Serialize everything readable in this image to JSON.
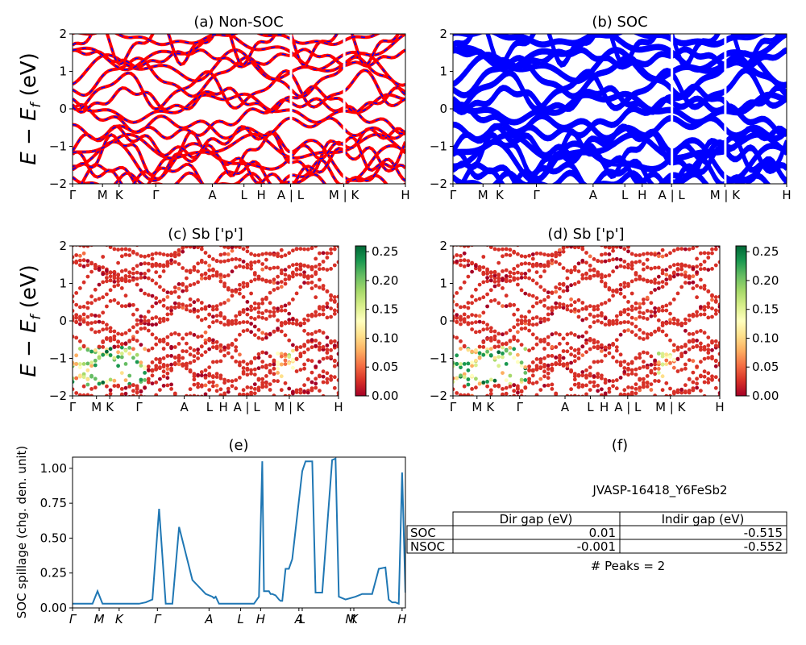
{
  "colors": {
    "nonsoc_primary": "#ff0000",
    "nonsoc_dash": "#0000ff",
    "soc_band": "#0000ff",
    "spillage_line": "#1f77b4",
    "colormap": [
      "#a50026",
      "#d73027",
      "#f46d43",
      "#fdae61",
      "#fee08b",
      "#ffffbf",
      "#d9ef8b",
      "#a6d96a",
      "#66bd63",
      "#1a9850",
      "#006837"
    ]
  },
  "kpath": {
    "labels": [
      "Γ",
      "M",
      "K",
      "Γ",
      "A",
      "L",
      "H",
      "A | L",
      "M | K",
      "H"
    ],
    "positions": [
      0,
      0.09,
      0.14,
      0.25,
      0.42,
      0.515,
      0.567,
      0.655,
      0.815,
      1.0
    ]
  },
  "panels": {
    "a": {
      "title": "(a) Non-SOC",
      "ylabel": "E − E",
      "ylabel_sub": "f",
      "ylabel_unit": " (eV)",
      "yticks": [
        "2",
        "1",
        "0",
        "−1",
        "−2"
      ]
    },
    "b": {
      "title": "(b) SOC",
      "yticks": [
        "2",
        "1",
        "0",
        "−1",
        "−2"
      ]
    },
    "c": {
      "title": "(c)  Sb ['p']",
      "ylabel": "E − E",
      "ylabel_sub": "f",
      "ylabel_unit": " (eV)",
      "yticks": [
        "2",
        "1",
        "0",
        "−1",
        "−2"
      ],
      "cbar_ticks": [
        "0.25",
        "0.20",
        "0.15",
        "0.10",
        "0.05",
        "0.00"
      ]
    },
    "d": {
      "title": "(d) Sb ['p']",
      "yticks": [
        "2",
        "1",
        "0",
        "−1",
        "−2"
      ],
      "cbar_ticks": [
        "0.25",
        "0.20",
        "0.15",
        "0.10",
        "0.05",
        "0.00"
      ]
    },
    "e": {
      "title": "(e)",
      "ylabel": "SOC spillage (chg. den. unit)",
      "yticks": [
        "1.00",
        "0.75",
        "0.50",
        "0.25",
        "0.00"
      ],
      "xticks": [
        "Γ",
        "M",
        "K",
        "Γ",
        "A",
        "L",
        "H",
        "A",
        "L",
        "M",
        "K",
        "H"
      ]
    },
    "f": {
      "title": "(f)",
      "material": "JVASP-16418_Y6FeSb2",
      "table": {
        "headers": [
          "Dir gap (eV)",
          "Indir gap (eV)"
        ],
        "rows": [
          {
            "label": "SOC",
            "dir": "0.01",
            "indir": "-0.515"
          },
          {
            "label": "NSOC",
            "dir": "-0.001",
            "indir": "-0.552"
          }
        ]
      },
      "peaks": "# Peaks = 2"
    }
  },
  "chart_data": [
    {
      "type": "line",
      "title": "(a) Non-SOC",
      "ylabel": "E − E_f (eV)",
      "ylim": [
        -2,
        2
      ],
      "x_ticklabels": [
        "Γ",
        "M",
        "K",
        "Γ",
        "A",
        "L",
        "H",
        "A | L",
        "M | K",
        "H"
      ]
    },
    {
      "type": "line",
      "title": "(b) SOC",
      "ylim": [
        -2,
        2
      ],
      "x_ticklabels": [
        "Γ",
        "M",
        "K",
        "Γ",
        "A",
        "L",
        "H",
        "A | L",
        "M | K",
        "H"
      ]
    },
    {
      "type": "scatter",
      "title": "(c)  Sb ['p']",
      "ylabel": "E − E_f (eV)",
      "ylim": [
        -2,
        2
      ],
      "colorbar_range": [
        0.0,
        0.26
      ]
    },
    {
      "type": "scatter",
      "title": "(d) Sb ['p']",
      "ylim": [
        -2,
        2
      ],
      "colorbar_range": [
        0.0,
        0.26
      ]
    },
    {
      "type": "line",
      "title": "(e)",
      "ylabel": "SOC spillage (chg. den. unit)",
      "ylim": [
        0,
        1.08
      ],
      "xlim": [
        0,
        1
      ],
      "x_ticklabels": [
        "Γ",
        "M",
        "K",
        "Γ",
        "A",
        "L",
        "H",
        "A",
        "L",
        "M",
        "K",
        "H"
      ],
      "x": [
        0,
        0.04,
        0.06,
        0.075,
        0.09,
        0.14,
        0.15,
        0.17,
        0.175,
        0.185,
        0.2,
        0.22,
        0.24,
        0.26,
        0.28,
        0.3,
        0.32,
        0.36,
        0.4,
        0.42,
        0.425,
        0.43,
        0.44,
        0.46,
        0.48,
        0.5,
        0.51,
        0.53,
        0.54,
        0.545,
        0.56,
        0.57,
        0.575,
        0.585,
        0.59,
        0.595,
        0.6,
        0.61,
        0.62,
        0.625,
        0.63,
        0.64,
        0.65,
        0.66,
        0.69,
        0.7,
        0.72,
        0.73,
        0.75,
        0.78,
        0.79,
        0.8,
        0.82,
        0.85,
        0.87,
        0.9,
        0.92,
        0.94,
        0.95,
        0.96,
        0.97,
        0.98,
        0.99,
        1.0
      ],
      "values": [
        0.03,
        0.03,
        0.03,
        0.12,
        0.03,
        0.03,
        0.03,
        0.03,
        0.03,
        0.03,
        0.03,
        0.04,
        0.06,
        0.71,
        0.03,
        0.03,
        0.58,
        0.2,
        0.1,
        0.08,
        0.07,
        0.08,
        0.03,
        0.03,
        0.03,
        0.03,
        0.03,
        0.03,
        0.03,
        0.03,
        0.08,
        1.05,
        0.12,
        0.12,
        0.12,
        0.1,
        0.1,
        0.09,
        0.06,
        0.05,
        0.05,
        0.28,
        0.28,
        0.35,
        0.98,
        1.05,
        1.05,
        0.11,
        0.11,
        1.06,
        1.07,
        0.08,
        0.06,
        0.08,
        0.1,
        0.1,
        0.28,
        0.29,
        0.06,
        0.04,
        0.04,
        0.03,
        0.97,
        0.11
      ]
    }
  ]
}
